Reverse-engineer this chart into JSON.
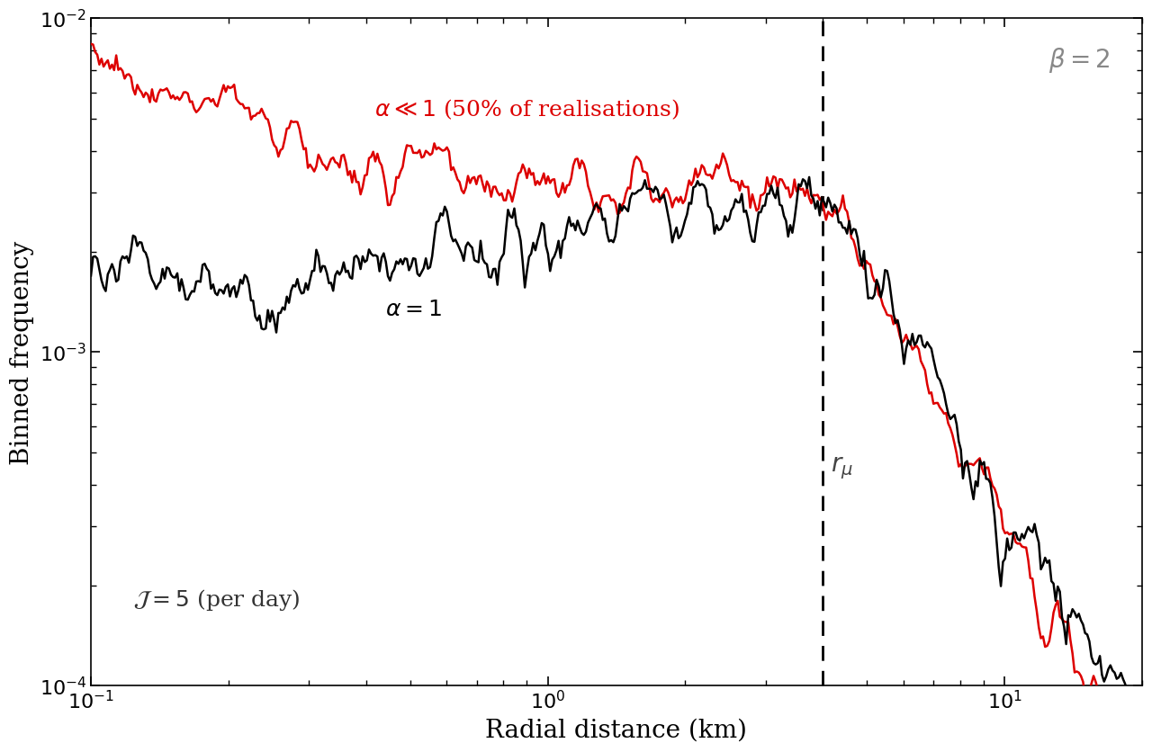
{
  "xlabel": "Radial distance (km)",
  "ylabel": "Binned frequency",
  "r_mu": 4.0,
  "J_label": "$\\mathcal{J} = 5$ (per day)",
  "alpha_1_label": "$\\alpha = 1$",
  "alpha_small_label": "$\\alpha \\ll 1$ (50% of realisations)",
  "beta_label": "$\\beta = 2$",
  "r_mu_label": "$r_{\\mu}$",
  "line_color_red": "#dd0000",
  "line_color_black": "#000000",
  "background_color": "#ffffff",
  "xlabel_fontsize": 20,
  "ylabel_fontsize": 20,
  "annotation_fontsize": 18,
  "tick_fontsize": 16
}
